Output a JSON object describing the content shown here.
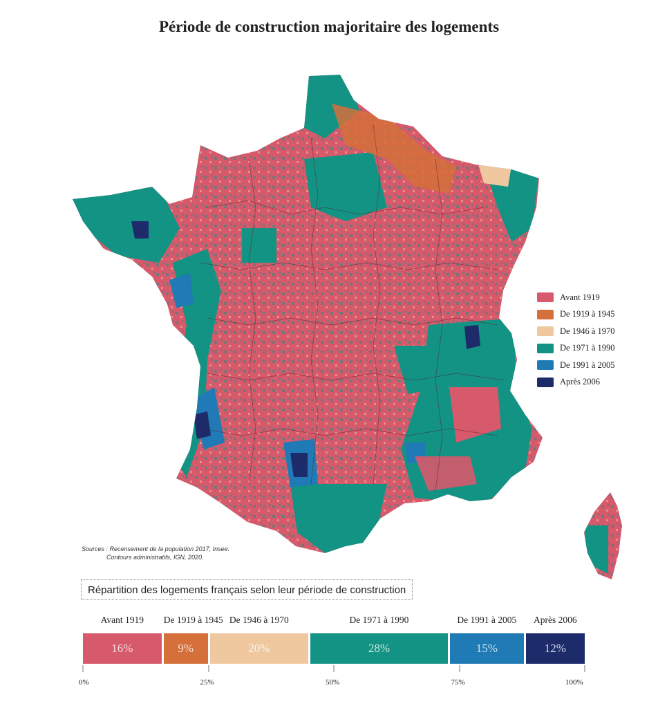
{
  "title": "Période de construction majoritaire des logements",
  "legend": [
    {
      "label": "Avant 1919",
      "color": "#d7596c"
    },
    {
      "label": "De 1919 à 1945",
      "color": "#d5703a"
    },
    {
      "label": "De 1946 à 1970",
      "color": "#efc8a0"
    },
    {
      "label": "De 1971 à 1990",
      "color": "#139384"
    },
    {
      "label": "De 1991 à 2005",
      "color": "#1f7ab5"
    },
    {
      "label": "Après 2006",
      "color": "#1d2b6b"
    }
  ],
  "sources": {
    "line1": "Sources : Recensement de la population 2017, Insee.",
    "line2": "Contours administratifs, IGN, 2020."
  },
  "distribution": {
    "title": "Répartition des logements français selon leur période de construction",
    "segments": [
      {
        "label": "Avant 1919",
        "value_label": "16%",
        "value": 16,
        "color": "#d7596c"
      },
      {
        "label": "De 1919 à 1945",
        "value_label": "9%",
        "value": 9,
        "color": "#d5703a"
      },
      {
        "label": "De 1946 à 1970",
        "value_label": "20%",
        "value": 20,
        "color": "#efc8a0"
      },
      {
        "label": "De 1971 à 1990",
        "value_label": "28%",
        "value": 28,
        "color": "#139384"
      },
      {
        "label": "De 1991 à 2005",
        "value_label": "15%",
        "value": 15,
        "color": "#1f7ab5"
      },
      {
        "label": "Après 2006",
        "value_label": "12%",
        "value": 12,
        "color": "#1d2b6b"
      }
    ],
    "axis_labels": [
      "0%",
      "25%",
      "50%",
      "75%",
      "100%"
    ]
  }
}
